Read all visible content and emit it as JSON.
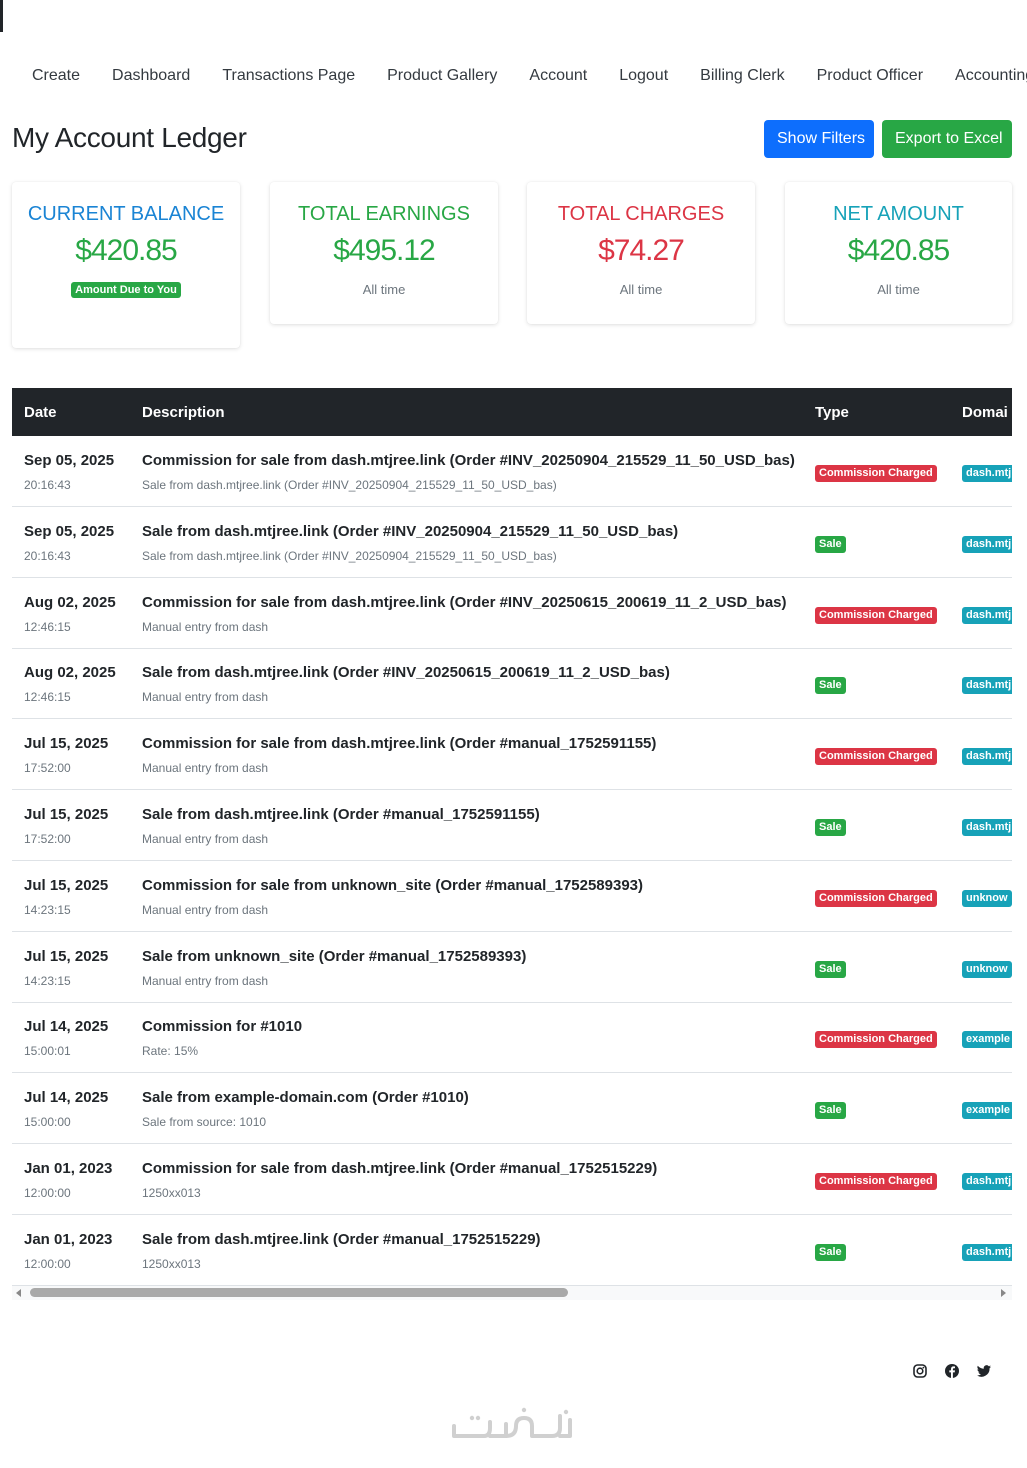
{
  "nav": [
    "Create",
    "Dashboard",
    "Transactions Page",
    "Product Gallery",
    "Account",
    "Logout",
    "Billing Clerk",
    "Product Officer",
    "Accounting"
  ],
  "page_title": "My Account Ledger",
  "buttons": {
    "show_filters": "Show Filters",
    "export": "Export to Excel"
  },
  "cards": {
    "current_balance": {
      "title": "CURRENT BALANCE",
      "value": "$420.85",
      "badge": "Amount Due to You"
    },
    "total_earnings": {
      "title": "TOTAL EARNINGS",
      "value": "$495.12",
      "sub": "All time"
    },
    "total_charges": {
      "title": "TOTAL CHARGES",
      "value": "$74.27",
      "sub": "All time"
    },
    "net_amount": {
      "title": "NET AMOUNT",
      "value": "$420.85",
      "sub": "All time"
    }
  },
  "table": {
    "headers": {
      "date": "Date",
      "description": "Description",
      "type": "Type",
      "domain": "Domai"
    },
    "rows": [
      {
        "date": "Sep 05, 2025",
        "time": "20:16:43",
        "description": "Commission for sale from dash.mtjree.link (Order #INV_20250904_215529_11_50_USD_bas)",
        "note": "Sale from dash.mtjree.link (Order #INV_20250904_215529_11_50_USD_bas)",
        "type": "Commission Charged",
        "domain": "dash.mtj"
      },
      {
        "date": "Sep 05, 2025",
        "time": "20:16:43",
        "description": "Sale from dash.mtjree.link (Order #INV_20250904_215529_11_50_USD_bas)",
        "note": "Sale from dash.mtjree.link (Order #INV_20250904_215529_11_50_USD_bas)",
        "type": "Sale",
        "domain": "dash.mtj"
      },
      {
        "date": "Aug 02, 2025",
        "time": "12:46:15",
        "description": "Commission for sale from dash.mtjree.link (Order #INV_20250615_200619_11_2_USD_bas)",
        "note": "Manual entry from dash",
        "type": "Commission Charged",
        "domain": "dash.mtj"
      },
      {
        "date": "Aug 02, 2025",
        "time": "12:46:15",
        "description": "Sale from dash.mtjree.link (Order #INV_20250615_200619_11_2_USD_bas)",
        "note": "Manual entry from dash",
        "type": "Sale",
        "domain": "dash.mtj"
      },
      {
        "date": "Jul 15, 2025",
        "time": "17:52:00",
        "description": "Commission for sale from dash.mtjree.link (Order #manual_1752591155)",
        "note": "Manual entry from dash",
        "type": "Commission Charged",
        "domain": "dash.mtj"
      },
      {
        "date": "Jul 15, 2025",
        "time": "17:52:00",
        "description": "Sale from dash.mtjree.link (Order #manual_1752591155)",
        "note": "Manual entry from dash",
        "type": "Sale",
        "domain": "dash.mtj"
      },
      {
        "date": "Jul 15, 2025",
        "time": "14:23:15",
        "description": "Commission for sale from unknown_site (Order #manual_1752589393)",
        "note": "Manual entry from dash",
        "type": "Commission Charged",
        "domain": "unknow"
      },
      {
        "date": "Jul 15, 2025",
        "time": "14:23:15",
        "description": "Sale from unknown_site (Order #manual_1752589393)",
        "note": "Manual entry from dash",
        "type": "Sale",
        "domain": "unknow"
      },
      {
        "date": "Jul 14, 2025",
        "time": "15:00:01",
        "description": "Commission for #1010",
        "note": "Rate: 15%",
        "type": "Commission Charged",
        "domain": "example"
      },
      {
        "date": "Jul 14, 2025",
        "time": "15:00:00",
        "description": "Sale from example-domain.com (Order #1010)",
        "note": "Sale from source: 1010",
        "type": "Sale",
        "domain": "example"
      },
      {
        "date": "Jan 01, 2023",
        "time": "12:00:00",
        "description": "Commission for sale from dash.mtjree.link (Order #manual_1752515229)",
        "note": "1250xx013",
        "type": "Commission Charged",
        "domain": "dash.mtj"
      },
      {
        "date": "Jan 01, 2023",
        "time": "12:00:00",
        "description": "Sale from dash.mtjree.link (Order #manual_1752515229)",
        "note": "1250xx013",
        "type": "Sale",
        "domain": "dash.mtj"
      }
    ]
  },
  "colors": {
    "primary": "#0d6efd",
    "success": "#28a745",
    "danger": "#dc3545",
    "info": "#17a2b8",
    "header_bg": "#212529"
  },
  "footer": {
    "social_icons": [
      "instagram-icon",
      "facebook-icon",
      "twitter-icon"
    ],
    "watermark": "خمسات"
  }
}
